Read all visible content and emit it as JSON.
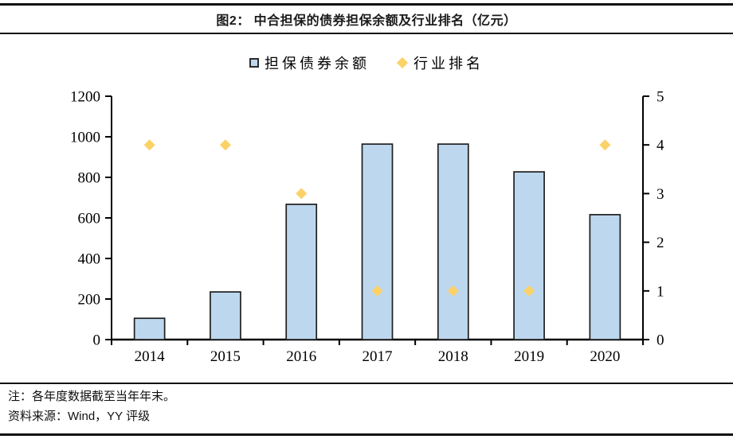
{
  "header": {
    "title": "图2：  中合担保的债券担保余额及行业排名（亿元）"
  },
  "chart_data": {
    "type": "bar",
    "subtype": "bar-with-scatter-combo",
    "title": "中合担保的债券担保余额及行业排名（亿元）",
    "figure_label": "图2",
    "categories": [
      "2014",
      "2015",
      "2016",
      "2017",
      "2018",
      "2019",
      "2020"
    ],
    "series": [
      {
        "name": "担保债券余额",
        "type": "bar",
        "axis": "left",
        "values": [
          105,
          235,
          667,
          964,
          964,
          827,
          616
        ],
        "fill": "#BDD7EE",
        "stroke": "#1F1F1F"
      },
      {
        "name": "行业排名",
        "type": "scatter",
        "marker": "diamond",
        "axis": "right",
        "values": [
          4,
          4,
          3,
          1,
          1,
          1,
          4
        ],
        "fill": "#FBD267"
      }
    ],
    "left_axis": {
      "min": 0,
      "max": 1200,
      "step": 200,
      "tick_labels": [
        "0",
        "200",
        "400",
        "600",
        "800",
        "1000",
        "1200"
      ]
    },
    "right_axis": {
      "min": 0,
      "max": 5,
      "step": 1,
      "tick_labels": [
        "0",
        "1",
        "2",
        "3",
        "4",
        "5"
      ]
    },
    "grid": false,
    "legend_position": "top-center"
  },
  "footer": {
    "note": "注：各年度数据截至当年年末。",
    "source": "资料来源：Wind，YY 评级"
  },
  "colors": {
    "bar_fill": "#BDD7EE",
    "bar_stroke": "#1F1F1F",
    "diamond_fill": "#FBD267",
    "axis": "#000000",
    "rule": "#111111"
  }
}
